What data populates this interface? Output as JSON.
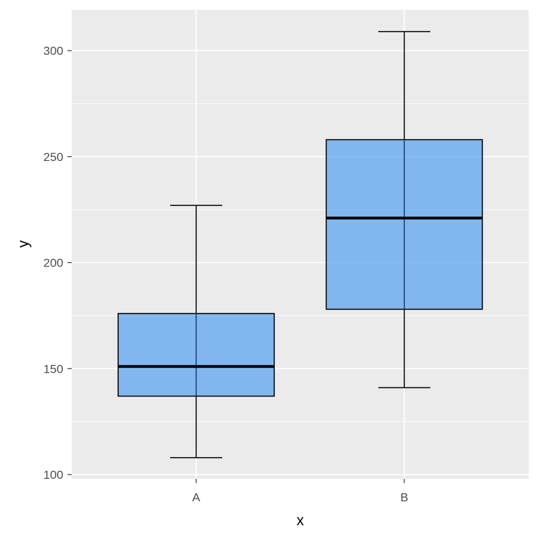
{
  "chart_data": {
    "type": "boxplot",
    "title": "",
    "xlabel": "x",
    "ylabel": "y",
    "categories": [
      "A",
      "B"
    ],
    "ylim": [
      93,
      315
    ],
    "yticks": [
      100,
      150,
      200,
      250,
      300
    ],
    "grid": true,
    "legend": null,
    "fill_color": "#56a0f0",
    "fill_opacity": 0.7,
    "panel_background": "#ebebeb",
    "series": [
      {
        "name": "A",
        "lower_whisker": 108,
        "q1": 137,
        "median": 151,
        "q3": 176,
        "upper_whisker": 227
      },
      {
        "name": "B",
        "lower_whisker": 141,
        "q1": 178,
        "median": 221,
        "q3": 258,
        "upper_whisker": 309
      }
    ]
  }
}
